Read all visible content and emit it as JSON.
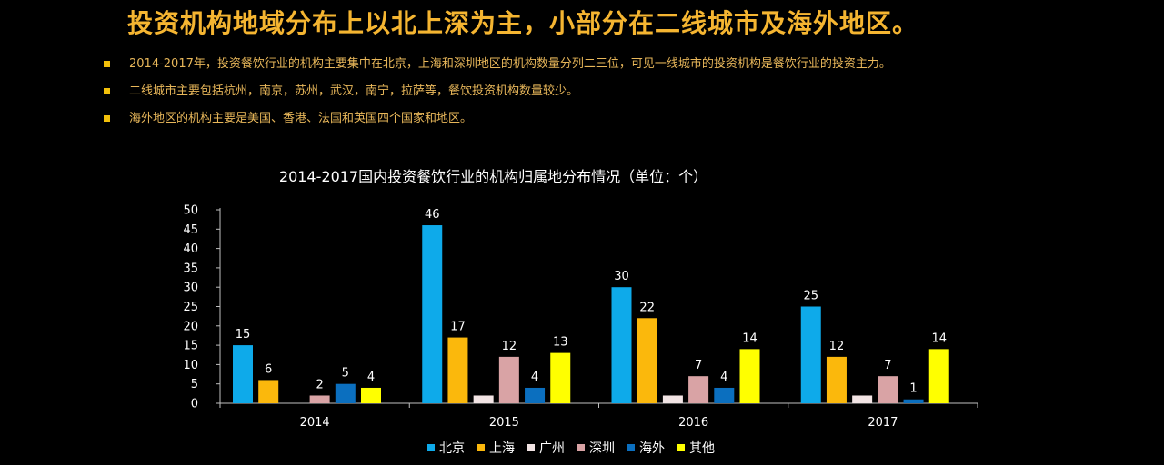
{
  "page": {
    "title": "投资机构地域分布上以北上深为主，小部分在二线城市及海外地区。",
    "bullets": [
      "2014-2017年，投资餐饮行业的机构主要集中在北京，上海和深圳地区的机构数量分列二三位，可见一线城市的投资机构是餐饮行业的投资主力。",
      "二线城市主要包括杭州，南京，苏州，武汉，南宁，拉萨等，餐饮投资机构数量较少。",
      "海外地区的机构主要是美国、香港、法国和英国四个国家和地区。"
    ]
  },
  "colors": {
    "background": "#000000",
    "title": "#f5b531",
    "bullet_text": "#e8b75a",
    "bullet_marker": "#f2c00a"
  },
  "chart_data": {
    "type": "bar",
    "title": "2014-2017国内投资餐饮行业的机构归属地分布情况（单位：个）",
    "categories": [
      "2014",
      "2015",
      "2016",
      "2017"
    ],
    "series": [
      {
        "name": "北京",
        "color": "#0eaaea",
        "values": [
          15,
          46,
          30,
          25
        ],
        "labels": [
          "15",
          "46",
          "30",
          "25"
        ]
      },
      {
        "name": "上海",
        "color": "#fbb80c",
        "values": [
          6,
          17,
          22,
          12
        ],
        "labels": [
          "6",
          "17",
          "22",
          "12"
        ]
      },
      {
        "name": "广州",
        "color": "#f2e4e4",
        "values": [
          0,
          2,
          2,
          2
        ],
        "labels": [
          "",
          "",
          "",
          ""
        ]
      },
      {
        "name": "深圳",
        "color": "#d9a3a5",
        "values": [
          2,
          12,
          7,
          7
        ],
        "labels": [
          "2",
          "12",
          "7",
          "7"
        ]
      },
      {
        "name": "海外",
        "color": "#0b6fbf",
        "values": [
          5,
          4,
          4,
          1
        ],
        "labels": [
          "5",
          "4",
          "4",
          "1"
        ]
      },
      {
        "name": "其他",
        "color": "#ffff00",
        "values": [
          4,
          13,
          14,
          14
        ],
        "labels": [
          "4",
          "13",
          "14",
          "14"
        ]
      }
    ],
    "ylim": [
      0,
      50
    ],
    "yticks": [
      "0",
      "5",
      "10",
      "15",
      "20",
      "25",
      "30",
      "35",
      "40",
      "45",
      "50"
    ],
    "legend_position": "bottom",
    "grid": false
  }
}
